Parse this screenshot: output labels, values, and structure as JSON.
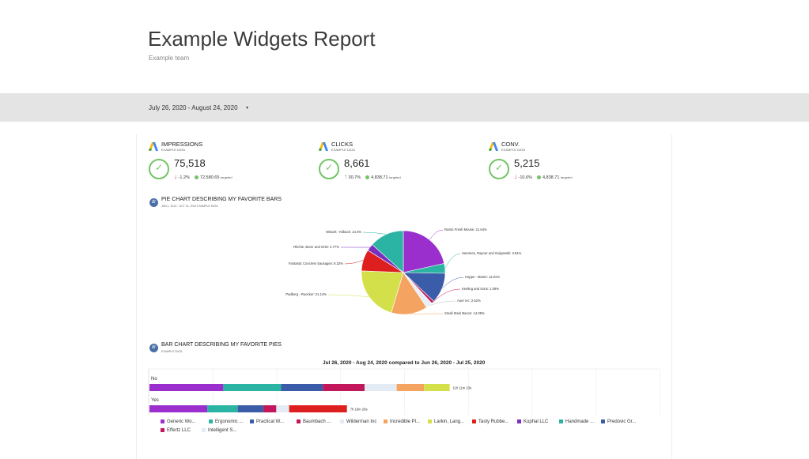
{
  "header": {
    "title": "Example Widgets Report",
    "team": "Example team"
  },
  "date_filter": {
    "range": "July 26, 2020 - August 24, 2020",
    "caret": "▾"
  },
  "kpis": [
    {
      "title": "IMPRESSIONS",
      "sub": "EXAMPLE DATA",
      "value": "75,518",
      "delta_arrow": "↓",
      "delta": "-1.2%",
      "target": "72,580.65",
      "target_label": "targeted",
      "trend": "down"
    },
    {
      "title": "CLICKS",
      "sub": "EXAMPLE DATA",
      "value": "8,661",
      "delta_arrow": "↑",
      "delta": "30.7%",
      "target": "4,838.71",
      "target_label": "targeted",
      "trend": "up"
    },
    {
      "title": "CONV.",
      "sub": "EXAMPLE DATA",
      "value": "5,215",
      "delta_arrow": "↓",
      "delta": "-10.6%",
      "target": "4,838.71",
      "target_label": "targeted",
      "trend": "down"
    }
  ],
  "pie_section": {
    "icon": "dr",
    "title": "PIE CHART DESCRIBING MY FAVORITE BARS",
    "sub": "JAN 1, 2019 - OCT 31, 2019   EXAMPLE DATA"
  },
  "bar_section": {
    "icon": "dr",
    "title": "BAR CHART DESCRIBING MY FAVORITE PIES",
    "sub": "EXAMPLE DATA",
    "chart_title": "Jul 26, 2020 - Aug 24, 2020 compared to Jun 26, 2020 - Jul 25, 2020"
  },
  "chart_data": [
    {
      "type": "pie",
      "slices": [
        {
          "label": "Rustic Fresh Mouse: 21.64%",
          "value": 21.64,
          "color": "#9b2fce"
        },
        {
          "label": "Hammes, Raynor and Gulgowski: 3.81%",
          "value": 3.81,
          "color": "#2bb3a3"
        },
        {
          "label": "Hoppe - Mante: 11.81%",
          "value": 11.81,
          "color": "#3b5ca8"
        },
        {
          "label": "Keeling and Sons: 1.09%",
          "value": 1.09,
          "color": "#c2185b"
        },
        {
          "label": "Auer Inc: 2.52%",
          "value": 2.52,
          "color": "#e8eef6"
        },
        {
          "label": "Small Steel Bacon: 14.09%",
          "value": 14.09,
          "color": "#f4a460"
        },
        {
          "label": "Padberg - Ruecker: 21.14%",
          "value": 21.14,
          "color": "#d4e04a"
        },
        {
          "label": "Fantastic Concrete Sausages: 8.32%",
          "value": 8.32,
          "color": "#dd1f1f"
        },
        {
          "label": "Ritchie, Borer and Ortiz: 2.77%",
          "value": 2.77,
          "color": "#7b2fbe"
        },
        {
          "label": "Wisozk - Kilback: 13.4%",
          "value": 13.4,
          "color": "#2bb3a3"
        }
      ]
    },
    {
      "type": "bar",
      "orientation": "horizontal-stacked",
      "categories": [
        "No",
        "Yes"
      ],
      "totals": [
        "11h 11m 23s",
        "7h 16m 26s"
      ],
      "series": [
        {
          "name": "Generic Wo...",
          "color": "#9b2fce",
          "values": [
            2.3,
            1.8
          ]
        },
        {
          "name": "Ergonomic ...",
          "color": "#2bb3a3",
          "values": [
            1.8,
            0.95
          ]
        },
        {
          "name": "Practical W...",
          "color": "#3b5ca8",
          "values": [
            1.3,
            0.8
          ]
        },
        {
          "name": "Baumbach ...",
          "color": "#c2185b",
          "values": [
            1.3,
            0.4
          ]
        },
        {
          "name": "Wilderman Inc",
          "color": "#e3ebf5",
          "values": [
            1.0,
            0.4
          ]
        },
        {
          "name": "Incredible Pl...",
          "color": "#f4a460",
          "values": [
            0.85,
            0
          ]
        },
        {
          "name": "Larkin, Lang...",
          "color": "#d4e04a",
          "values": [
            0.8,
            0
          ]
        },
        {
          "name": "Tasty Rubbe...",
          "color": "#dd1f1f",
          "values": [
            0,
            1.8
          ]
        },
        {
          "name": "Kuphal LLC",
          "color": "#7b2fbe",
          "values": [
            0,
            0
          ]
        },
        {
          "name": "Handmade ...",
          "color": "#2bb3a3",
          "values": [
            0,
            0
          ]
        },
        {
          "name": "Predovic Gr...",
          "color": "#3b5ca8",
          "values": [
            0,
            0
          ]
        },
        {
          "name": "Effertz LLC",
          "color": "#c2185b",
          "values": [
            0,
            0
          ]
        },
        {
          "name": "Intelligent S...",
          "color": "#e3ebf5",
          "values": [
            0,
            0
          ]
        }
      ]
    }
  ]
}
